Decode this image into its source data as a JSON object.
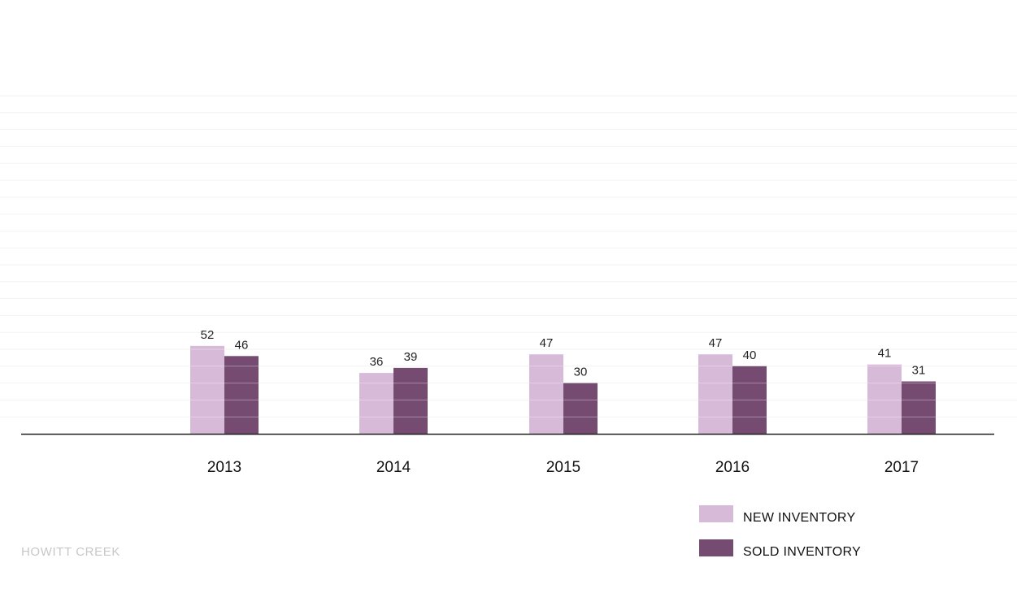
{
  "chart_data": {
    "type": "bar",
    "categories": [
      "2013",
      "2014",
      "2015",
      "2016",
      "2017"
    ],
    "series": [
      {
        "name": "NEW INVENTORY",
        "values": [
          52,
          36,
          47,
          47,
          41
        ],
        "color": "#d7b9d8"
      },
      {
        "name": "SOLD INVENTORY",
        "values": [
          46,
          39,
          30,
          40,
          31
        ],
        "color": "#764b72"
      }
    ],
    "title": "",
    "xlabel": "",
    "ylabel": "",
    "ylim": [
      0,
      200
    ],
    "grid": true,
    "legend_position": "bottom-right"
  },
  "footer": {
    "caption": "HOWITT CREEK"
  },
  "colors": {
    "axis": "#222222",
    "grid": "#f2f2f2",
    "bar_stripe": "#ffffff"
  }
}
